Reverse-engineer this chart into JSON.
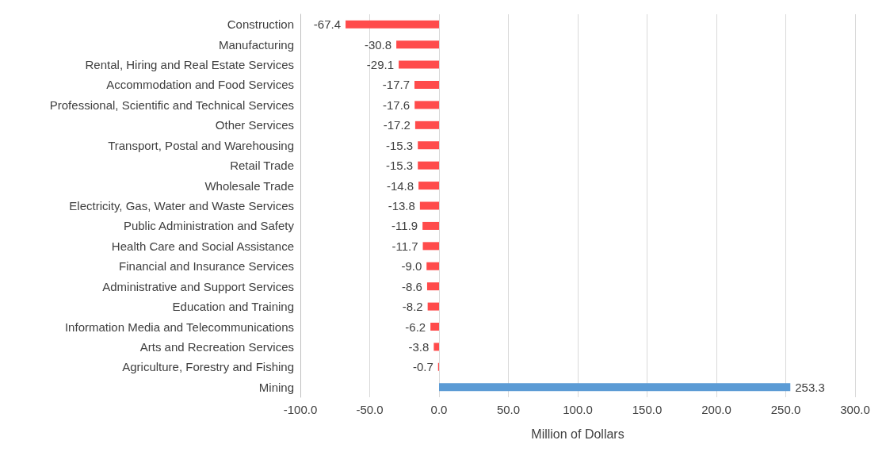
{
  "chart_data": {
    "type": "bar",
    "orientation": "horizontal",
    "xlabel": "Million of Dollars",
    "categories": [
      "Construction",
      "Manufacturing",
      "Rental, Hiring and Real Estate Services",
      "Accommodation and Food Services",
      "Professional, Scientific and Technical Services",
      "Other Services",
      "Transport, Postal and Warehousing",
      "Retail Trade",
      "Wholesale Trade",
      "Electricity, Gas, Water and Waste Services",
      "Public Administration and Safety",
      "Health Care and Social Assistance",
      "Financial and Insurance Services",
      "Administrative and Support Services",
      "Education and Training",
      "Information Media and Telecommunications",
      "Arts and Recreation Services",
      "Agriculture, Forestry and Fishing",
      "Mining"
    ],
    "values": [
      -67.4,
      -30.8,
      -29.1,
      -17.7,
      -17.6,
      -17.2,
      -15.3,
      -15.3,
      -14.8,
      -13.8,
      -11.9,
      -11.7,
      -9.0,
      -8.6,
      -8.2,
      -6.2,
      -3.8,
      -0.7,
      253.3
    ],
    "value_labels": [
      "-67.4",
      "-30.8",
      "-29.1",
      "-17.7",
      "-17.6",
      "-17.2",
      "-15.3",
      "-15.3",
      "-14.8",
      "-13.8",
      "-11.9",
      "-11.7",
      "-9.0",
      "-8.6",
      "-8.2",
      "-6.2",
      "-3.8",
      "-0.7",
      "253.3"
    ],
    "colors": [
      "#ff4b4b",
      "#ff4b4b",
      "#ff4b4b",
      "#ff4b4b",
      "#ff4b4b",
      "#ff4b4b",
      "#ff4b4b",
      "#ff4b4b",
      "#ff4b4b",
      "#ff4b4b",
      "#ff4b4b",
      "#ff4b4b",
      "#ff4b4b",
      "#ff4b4b",
      "#ff4b4b",
      "#ff4b4b",
      "#ff4b4b",
      "#ff4b4b",
      "#5b9bd5"
    ],
    "xlim": [
      -100,
      300
    ],
    "xticks": [
      {
        "value": -100,
        "label": "-100.0"
      },
      {
        "value": -50,
        "label": "-50.0"
      },
      {
        "value": 0,
        "label": "0.0"
      },
      {
        "value": 50,
        "label": "50.0"
      },
      {
        "value": 100,
        "label": "100.0"
      },
      {
        "value": 150,
        "label": "150.0"
      },
      {
        "value": 200,
        "label": "200.0"
      },
      {
        "value": 250,
        "label": "250.0"
      },
      {
        "value": 300,
        "label": "300.0"
      }
    ],
    "grid": "x"
  }
}
